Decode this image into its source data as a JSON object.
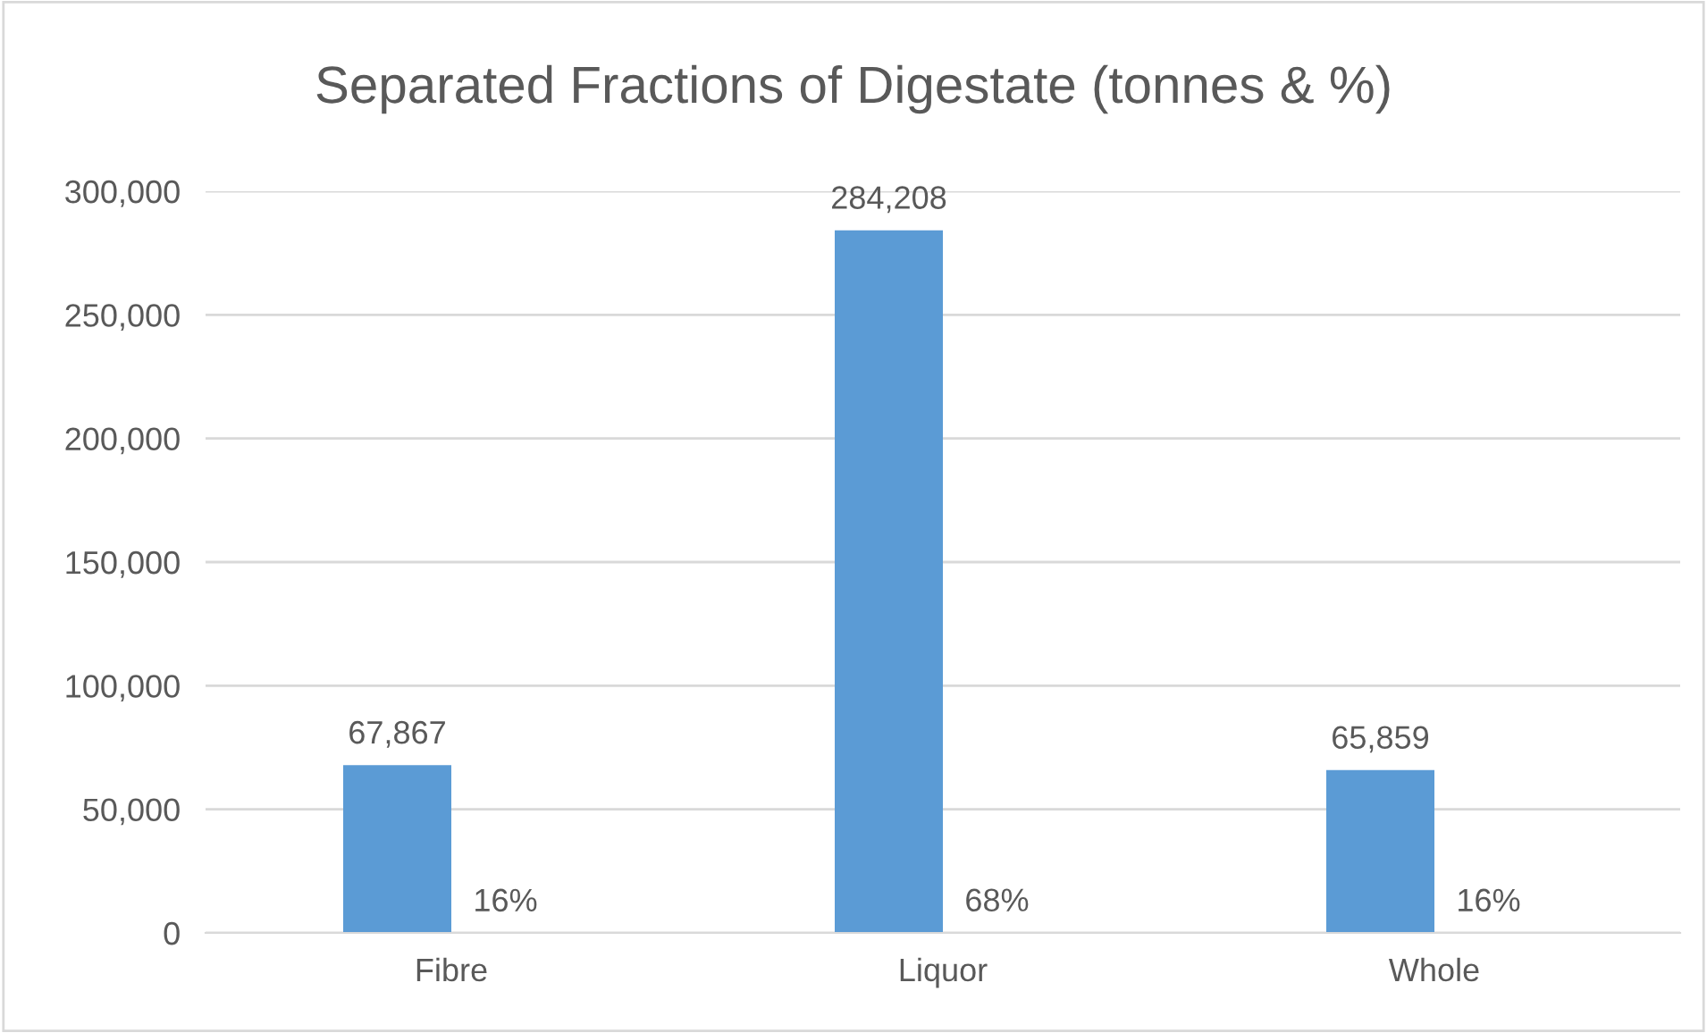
{
  "chart_data": {
    "type": "bar",
    "title": "Separated Fractions of Digestate (tonnes & %)",
    "categories": [
      "Fibre",
      "Liquor",
      "Whole"
    ],
    "series": [
      {
        "color": "#5b9bd5",
        "values": [
          67867,
          284208,
          65859
        ],
        "value_labels": [
          "67,867",
          "284,208",
          "65,859"
        ]
      },
      {
        "color": "#ed7d31",
        "values": [
          16,
          68,
          16
        ],
        "value_labels": [
          "16%",
          "68%",
          "16%"
        ]
      }
    ],
    "ylim": [
      0,
      300000
    ],
    "yticks": [
      {
        "value": 0,
        "label": "0"
      },
      {
        "value": 50000,
        "label": "50,000"
      },
      {
        "value": 100000,
        "label": "100,000"
      },
      {
        "value": 150000,
        "label": "150,000"
      },
      {
        "value": 200000,
        "label": "200,000"
      },
      {
        "value": 250000,
        "label": "250,000"
      },
      {
        "value": 300000,
        "label": "300,000"
      }
    ],
    "grid": "y",
    "legend": false
  }
}
